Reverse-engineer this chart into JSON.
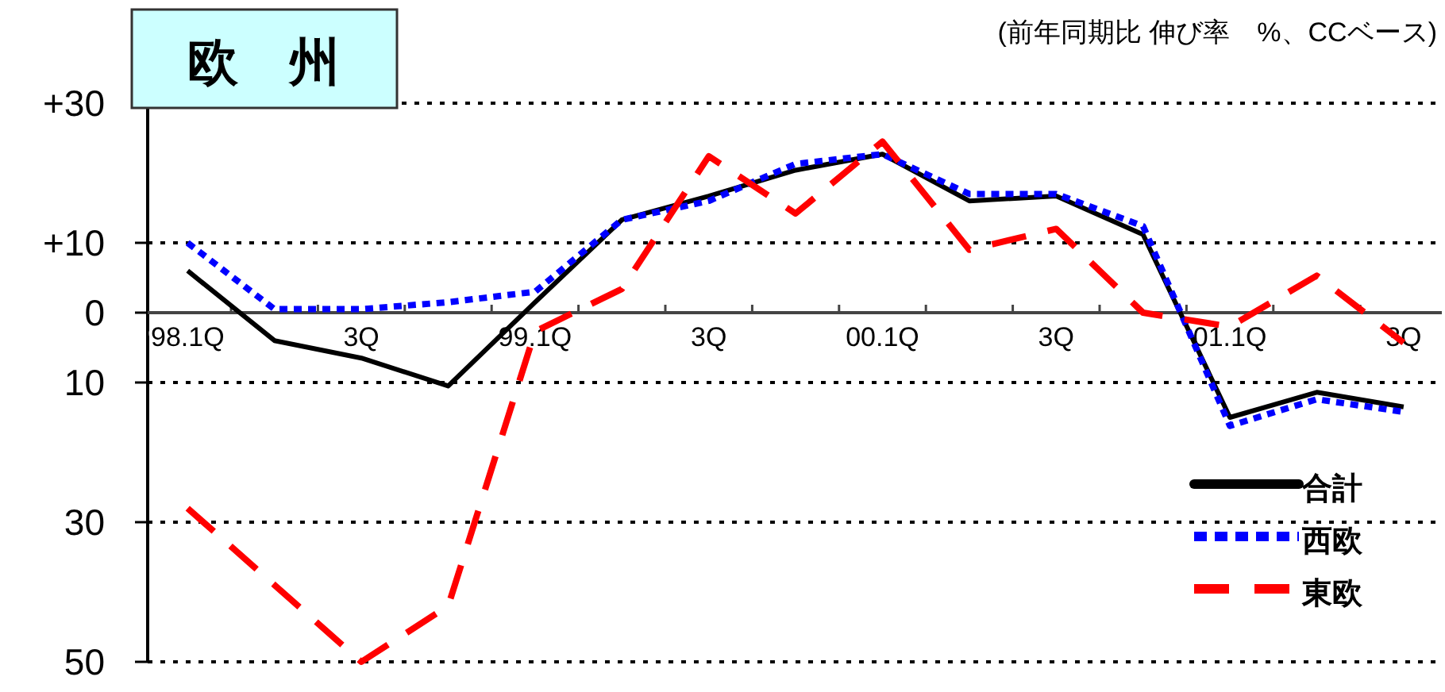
{
  "chart_data": {
    "type": "line",
    "title": "欧　州",
    "subtitle": "(前年同期比 伸び率　%、CCベース)",
    "categories": [
      "98.1Q",
      null,
      "3Q",
      null,
      "99.1Q",
      null,
      "3Q",
      null,
      "00.1Q",
      null,
      "3Q",
      null,
      "01.1Q",
      null,
      "3Q"
    ],
    "series": [
      {
        "name": "合計",
        "color": "#000000",
        "line_style": "solid",
        "values": [
          6,
          -4,
          -6.5,
          -10.5,
          1.5,
          13.3,
          16.7,
          20.4,
          22.7,
          16,
          16.7,
          11.2,
          -15,
          -11.4,
          -13.5
        ]
      },
      {
        "name": "西欧",
        "color": "#0000ff",
        "line_style": "dotted",
        "values": [
          10,
          0.5,
          0.5,
          1.5,
          3,
          13.3,
          16,
          21.3,
          22.7,
          17,
          17,
          12.4,
          -16.2,
          -12.4,
          -14.2
        ]
      },
      {
        "name": "東欧",
        "color": "#ff0000",
        "line_style": "dashed",
        "values": [
          -28,
          -39,
          -50,
          -42,
          -2.7,
          3.4,
          22.4,
          14.2,
          24.5,
          9,
          12,
          0,
          -2,
          5.3,
          -4.3
        ]
      }
    ],
    "ylim": [
      -50,
      30
    ],
    "yticks": [
      {
        "value": 30,
        "label": "+30"
      },
      {
        "value": 10,
        "label": "+10"
      },
      0,
      {
        "value": -10,
        "label": "10"
      },
      {
        "value": -30,
        "label": "30"
      },
      {
        "value": -50,
        "label": "50"
      }
    ],
    "grid": "y",
    "legend": "bottom right",
    "marker": "none"
  }
}
